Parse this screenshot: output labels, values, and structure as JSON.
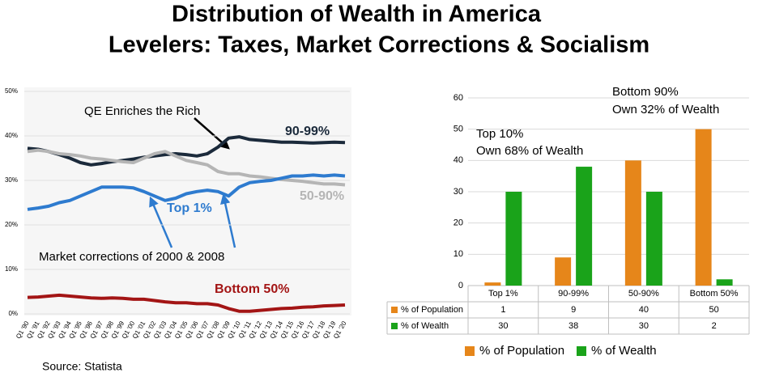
{
  "title": [
    "Distribution of Wealth in America",
    "Levelers: Taxes, Market Corrections & Socialism"
  ],
  "source": "Source: Statista",
  "chart_data": [
    {
      "type": "line",
      "categories": [
        "Q1 '90",
        "Q1 '91",
        "Q1 '92",
        "Q1 '93",
        "Q1 '94",
        "Q1 '95",
        "Q1 '96",
        "Q1 '97",
        "Q1 '98",
        "Q1 '99",
        "Q1 '00",
        "Q1 '01",
        "Q1 '02",
        "Q1 '03",
        "Q1 '04",
        "Q1 '05",
        "Q1 '06",
        "Q1 '07",
        "Q1 '08",
        "Q1 '09",
        "Q1 '10",
        "Q1 '11",
        "Q1 '12",
        "Q1 '13",
        "Q1 '14",
        "Q1 '15",
        "Q1 '16",
        "Q1 '17",
        "Q1 '18",
        "Q1 '19",
        "Q1 '20"
      ],
      "series": [
        {
          "name": "90-99%",
          "color": "#1b2a3b",
          "values": [
            37.2,
            37,
            36.5,
            35.8,
            35,
            34,
            33.5,
            33.8,
            34.2,
            34.5,
            34.8,
            35.2,
            35.5,
            35.8,
            36,
            35.8,
            35.5,
            36,
            37.5,
            39.5,
            39.8,
            39.2,
            39,
            38.8,
            38.6,
            38.6,
            38.5,
            38.4,
            38.5,
            38.6,
            38.5
          ]
        },
        {
          "name": "50-90%",
          "color": "#b5b5b5",
          "values": [
            36.5,
            36.8,
            36.5,
            36,
            35.8,
            35.5,
            35,
            34.8,
            34.5,
            34.2,
            34,
            35,
            36,
            36.5,
            35.5,
            34.5,
            34,
            33.5,
            32,
            31.5,
            31.5,
            31,
            30.8,
            30.5,
            30.2,
            30,
            29.8,
            29.5,
            29.2,
            29.2,
            29
          ]
        },
        {
          "name": "Top 1%",
          "color": "#2e7bcf",
          "values": [
            23.5,
            23.8,
            24.2,
            25,
            25.5,
            26.5,
            27.5,
            28.5,
            28.5,
            28.5,
            28.3,
            27.5,
            26.5,
            25.5,
            26,
            27,
            27.5,
            27.8,
            27.5,
            26.5,
            28.5,
            29.5,
            29.8,
            30,
            30.5,
            31,
            31,
            31.2,
            31,
            31.2,
            31
          ]
        },
        {
          "name": "Bottom 50%",
          "color": "#a31515",
          "values": [
            3.7,
            3.8,
            4,
            4.2,
            4,
            3.8,
            3.6,
            3.5,
            3.6,
            3.5,
            3.3,
            3.3,
            3,
            2.7,
            2.5,
            2.5,
            2.3,
            2.3,
            2,
            1.2,
            0.6,
            0.6,
            0.8,
            1,
            1.2,
            1.3,
            1.5,
            1.6,
            1.8,
            1.9,
            2
          ]
        }
      ],
      "ylim": [
        0,
        50
      ],
      "yticks": [
        {
          "value": 0,
          "label": "0%"
        },
        {
          "value": 10,
          "label": "10%"
        },
        {
          "value": 20,
          "label": "20%"
        },
        {
          "value": 30,
          "label": "30%"
        },
        {
          "value": 40,
          "label": "40%"
        },
        {
          "value": 50,
          "label": "50%"
        }
      ],
      "grid": true,
      "annotations": [
        "QE Enriches the Rich",
        "Market corrections of 2000 & 2008"
      ]
    },
    {
      "type": "bar",
      "categories": [
        "Top 1%",
        "90-99%",
        "50-90%",
        "Bottom 50%"
      ],
      "series": [
        {
          "name": "% of Population",
          "color": "#e6861a",
          "values": [
            1,
            9,
            40,
            50
          ]
        },
        {
          "name": "% of Wealth",
          "color": "#1aa31a",
          "values": [
            30,
            38,
            30,
            2
          ]
        }
      ],
      "ylim": [
        0,
        60
      ],
      "yticks": [
        0,
        10,
        20,
        30,
        40,
        50,
        60
      ],
      "grid": true,
      "legend": "bottom",
      "annotations": [
        [
          "Bottom 90%",
          "Own 32% of Wealth"
        ],
        [
          "Top 10%",
          "Own 68% of Wealth"
        ]
      ]
    }
  ]
}
